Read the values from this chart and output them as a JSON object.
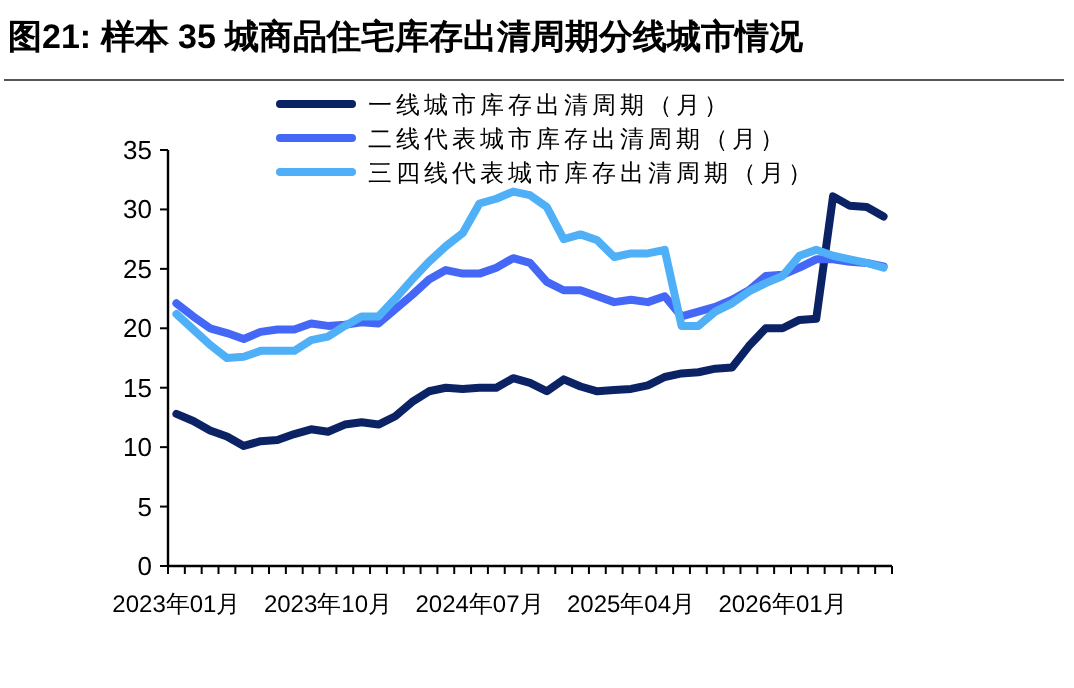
{
  "chart_data": {
    "type": "line",
    "title": "图21:  样本 35 城商品住宅库存出清周期分线城市情况",
    "categories": [
      "2023年01月",
      null,
      null,
      null,
      null,
      null,
      null,
      null,
      null,
      "2023年10月",
      null,
      null,
      null,
      null,
      null,
      null,
      null,
      null,
      "2024年07月",
      null,
      null,
      null,
      null,
      null,
      null,
      null,
      null,
      "2025年04月",
      null,
      null,
      null,
      null,
      null,
      null,
      null,
      null,
      "2026年01月",
      null,
      null,
      null,
      null,
      null,
      null
    ],
    "series": [
      {
        "name": "一线城市库存出清周期（月）",
        "color": "#0b2265",
        "values": [
          12.8,
          12.2,
          11.4,
          10.9,
          10.1,
          10.5,
          10.6,
          11.1,
          11.5,
          11.3,
          11.9,
          12.1,
          11.9,
          12.6,
          13.8,
          14.7,
          15.0,
          14.9,
          15.0,
          15.0,
          15.8,
          15.4,
          14.7,
          15.7,
          15.1,
          14.7,
          14.8,
          14.9,
          15.2,
          15.9,
          16.2,
          16.3,
          16.6,
          16.7,
          18.5,
          20.0,
          20.0,
          20.7,
          20.8,
          31.1,
          30.3,
          30.2,
          29.4
        ]
      },
      {
        "name": "二线代表城市库存出清周期（月）",
        "color": "#4468f5",
        "values": [
          22.1,
          21.0,
          20.0,
          19.6,
          19.1,
          19.7,
          19.9,
          19.9,
          20.4,
          20.2,
          20.3,
          20.5,
          20.4,
          21.6,
          22.8,
          24.1,
          24.9,
          24.6,
          24.6,
          25.1,
          25.9,
          25.5,
          23.9,
          23.2,
          23.2,
          22.7,
          22.2,
          22.4,
          22.2,
          22.7,
          21.0,
          21.4,
          21.8,
          22.4,
          23.2,
          24.4,
          24.5,
          25.1,
          25.8,
          25.8,
          25.6,
          25.5,
          25.2
        ]
      },
      {
        "name": "三四线代表城市库存出清周期（月）",
        "color": "#4fb0f7",
        "values": [
          21.2,
          19.9,
          18.6,
          17.5,
          17.6,
          18.1,
          18.1,
          18.1,
          19.0,
          19.3,
          20.2,
          21.0,
          21.0,
          22.5,
          24.1,
          25.6,
          26.9,
          28.0,
          30.5,
          30.9,
          31.5,
          31.2,
          30.2,
          27.5,
          27.9,
          27.4,
          26.0,
          26.3,
          26.3,
          26.6,
          20.2,
          20.2,
          21.4,
          22.1,
          23.1,
          23.8,
          24.4,
          26.1,
          26.6,
          26.1,
          25.8,
          25.5,
          25.1
        ]
      }
    ],
    "ylim": [
      0,
      35
    ],
    "yticks": [
      0,
      5,
      10,
      15,
      20,
      25,
      30,
      35
    ],
    "grid": false,
    "legend": "top",
    "marker": "none",
    "line_style": "solid"
  }
}
